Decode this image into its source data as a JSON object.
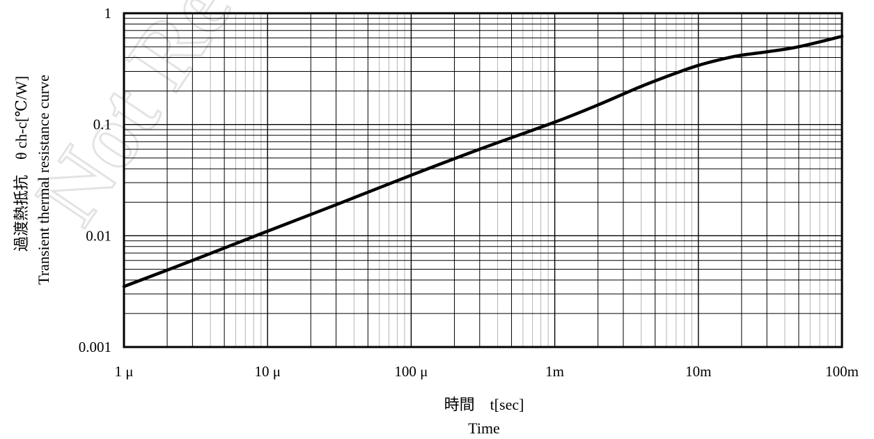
{
  "watermark": "Not Recommended",
  "colors": {
    "curve": "#000000",
    "grid_major": "#000000",
    "grid_minor": "#b4b4b4",
    "frame": "#000000",
    "watermark": "#e3e3e3"
  },
  "chart_data": {
    "type": "line",
    "x_scale": "log",
    "y_scale": "log",
    "xlim": [
      1e-06,
      0.1
    ],
    "ylim": [
      0.001,
      1
    ],
    "grid": true,
    "xlabel_line1": "時間　t[sec]",
    "xlabel_line2": "Time",
    "ylabel_line1": "過渡熱抵抗　θ ch-c[℃/W]",
    "ylabel_line2": "Transient thermal resistance curve",
    "x_ticks": [
      {
        "value": 1e-06,
        "label": "1 μ"
      },
      {
        "value": 1e-05,
        "label": "10 μ"
      },
      {
        "value": 0.0001,
        "label": "100 μ"
      },
      {
        "value": 0.001,
        "label": "1m"
      },
      {
        "value": 0.01,
        "label": "10m"
      },
      {
        "value": 0.1,
        "label": "100m"
      }
    ],
    "y_ticks": [
      {
        "value": 0.001,
        "label": "0.001"
      },
      {
        "value": 0.01,
        "label": "0.01"
      },
      {
        "value": 0.1,
        "label": "0.1"
      },
      {
        "value": 1,
        "label": "1"
      }
    ],
    "series": [
      {
        "points": [
          {
            "x": 1e-06,
            "y": 0.0035
          },
          {
            "x": 3e-06,
            "y": 0.006
          },
          {
            "x": 1e-05,
            "y": 0.011
          },
          {
            "x": 3e-05,
            "y": 0.019
          },
          {
            "x": 0.0001,
            "y": 0.035
          },
          {
            "x": 0.0003,
            "y": 0.06
          },
          {
            "x": 0.001,
            "y": 0.105
          },
          {
            "x": 0.002,
            "y": 0.15
          },
          {
            "x": 0.004,
            "y": 0.22
          },
          {
            "x": 0.007,
            "y": 0.29
          },
          {
            "x": 0.01,
            "y": 0.34
          },
          {
            "x": 0.015,
            "y": 0.39
          },
          {
            "x": 0.02,
            "y": 0.42
          },
          {
            "x": 0.03,
            "y": 0.45
          },
          {
            "x": 0.05,
            "y": 0.5
          },
          {
            "x": 0.1,
            "y": 0.62
          }
        ]
      }
    ]
  }
}
